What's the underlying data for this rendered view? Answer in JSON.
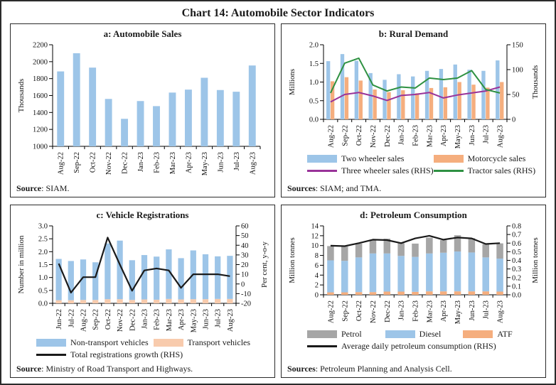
{
  "title": "Chart 14: Automobile Sector Indicators",
  "chart_data": [
    {
      "key": "a",
      "type": "bar",
      "title": "a: Automobile Sales",
      "ylabel_left": "Thousands",
      "ylim_left": [
        1000,
        2200
      ],
      "ytick_left": 200,
      "categories": [
        "Aug-22",
        "Sep-22",
        "Oct-22",
        "Nov-22",
        "Dec-22",
        "Jan-23",
        "Feb-23",
        "Mar-23",
        "Apr-23",
        "May-23",
        "Jun-23",
        "Jul-23",
        "Aug-23"
      ],
      "bar_series": [
        {
          "name": "Automobile sales",
          "color": "#9DC5E8",
          "values": [
            1885,
            2100,
            1930,
            1560,
            1325,
            1535,
            1475,
            1635,
            1670,
            1810,
            1665,
            1645,
            1955
          ]
        }
      ],
      "line_series": [],
      "legend": [],
      "legend_cols": 0,
      "source": {
        "bold": "Source",
        "rest": ": SIAM."
      }
    },
    {
      "key": "b",
      "type": "grouped-bar-line",
      "title": "b: Rural Demand",
      "ylabel_left": "Millions",
      "ylim_left": [
        0,
        2.0
      ],
      "ytick_left": 0.5,
      "ylabel_right": "Thousands",
      "ylim_right": [
        0,
        150
      ],
      "ytick_right": 50,
      "categories": [
        "Aug-22",
        "Sep-22",
        "Oct-22",
        "Nov-22",
        "Dec-22",
        "Jan-23",
        "Feb-23",
        "Mar-23",
        "Apr-23",
        "May-23",
        "Jun-23",
        "Jul-23",
        "Aug-23"
      ],
      "bar_series": [
        {
          "name": "Two wheeler sales",
          "color": "#9DC5E8",
          "values": [
            1.56,
            1.75,
            1.57,
            1.24,
            1.06,
            1.21,
            1.15,
            1.3,
            1.35,
            1.47,
            1.33,
            1.3,
            1.58
          ]
        },
        {
          "name": "Motorcycle sales",
          "color": "#F5AE7E",
          "values": [
            1.02,
            1.13,
            1.04,
            0.8,
            0.73,
            0.78,
            0.7,
            0.84,
            0.86,
            1.0,
            0.93,
            0.85,
            1.0
          ]
        }
      ],
      "line_series": [
        {
          "name": "Three wheeler sales (RHS)",
          "color": "#993399",
          "axis": "right",
          "values": [
            35,
            50,
            54,
            47,
            38,
            48,
            50,
            54,
            43,
            49,
            53,
            57,
            65
          ]
        },
        {
          "name": "Tractor sales (RHS)",
          "color": "#2E9142",
          "axis": "right",
          "values": [
            53,
            113,
            123,
            69,
            57,
            65,
            63,
            83,
            80,
            83,
            98,
            60,
            53
          ]
        }
      ],
      "legend": [
        {
          "label": "Two wheeler sales",
          "swatch": "bar",
          "color": "#9DC5E8"
        },
        {
          "label": "Motorcycle sales",
          "swatch": "bar",
          "color": "#F5AE7E"
        },
        {
          "label": "Three wheeler sales (RHS)",
          "swatch": "line",
          "color": "#993399"
        },
        {
          "label": "Tractor sales (RHS)",
          "swatch": "line",
          "color": "#2E9142"
        }
      ],
      "legend_cols": 2,
      "source": {
        "bold": "Sources",
        "rest": ": SIAM; and TMA."
      }
    },
    {
      "key": "c",
      "type": "stacked-bar-line",
      "title": "c: Vehicle Registrations",
      "ylabel_left": "Number in million",
      "ylim_left": [
        0,
        3.0
      ],
      "ytick_left": 0.5,
      "ylabel_right": "Per cent, y-o-y",
      "ylim_right": [
        -20,
        60
      ],
      "ytick_right": 10,
      "categories": [
        "Jun-22",
        "Jul-22",
        "Aug-22",
        "Sep-22",
        "Oct-22",
        "Nov-22",
        "Dec-22",
        "Jan-23",
        "Feb-23",
        "Mar-23",
        "Apr-23",
        "May-23",
        "Jun-23",
        "Jul-23",
        "Aug-23"
      ],
      "bar_series": [
        {
          "name": "Transport vehicles",
          "color": "#F8CBAD",
          "values": [
            0.12,
            0.12,
            0.13,
            0.13,
            0.16,
            0.16,
            0.13,
            0.15,
            0.14,
            0.17,
            0.15,
            0.16,
            0.16,
            0.17,
            0.17
          ]
        },
        {
          "name": "Non-transport vehicles",
          "color": "#9DC5E8",
          "values": [
            1.6,
            1.52,
            1.57,
            1.46,
            2.16,
            2.27,
            1.54,
            1.72,
            1.67,
            1.92,
            1.6,
            1.89,
            1.74,
            1.65,
            1.67
          ]
        }
      ],
      "line_series": [
        {
          "name": "Total registrations growth (RHS)",
          "color": "#1a1a1a",
          "axis": "right",
          "values": [
            21,
            -9,
            7,
            7,
            48,
            20,
            -7,
            14,
            16,
            14,
            -4,
            10,
            10,
            10,
            8
          ]
        }
      ],
      "legend": [
        {
          "label": "Non-transport vehicles",
          "swatch": "bar",
          "color": "#9DC5E8"
        },
        {
          "label": "Transport vehicles",
          "swatch": "bar",
          "color": "#F8CBAD"
        },
        {
          "label": "Total registrations growth (RHS)",
          "swatch": "line",
          "color": "#1a1a1a"
        }
      ],
      "legend_cols": 2,
      "source": {
        "bold": "Source",
        "rest": ": Ministry of Road Transport and Highways."
      }
    },
    {
      "key": "d",
      "type": "stacked-bar-line",
      "title": "d: Petroleum Consumption",
      "ylabel_left": "Million tonnes",
      "ylim_left": [
        0,
        14
      ],
      "ytick_left": 2,
      "ylabel_right": "Million tonnes",
      "ylim_right": [
        0,
        0.8
      ],
      "ytick_right": 0.1,
      "categories": [
        "Aug-22",
        "Sep-22",
        "Oct-22",
        "Nov-22",
        "Dec-22",
        "Jan-23",
        "Feb-23",
        "Mar-23",
        "Apr-23",
        "May-23",
        "Jun-23",
        "Jul-23",
        "Aug-23"
      ],
      "bar_series": [
        {
          "name": "ATF",
          "color": "#F5AE7E",
          "values": [
            0.5,
            0.5,
            0.55,
            0.55,
            0.65,
            0.65,
            0.6,
            0.7,
            0.7,
            0.7,
            0.7,
            0.7,
            0.65
          ]
        },
        {
          "name": "Diesel",
          "color": "#9DC5E8",
          "values": [
            6.5,
            6.4,
            7.05,
            7.85,
            7.75,
            7.25,
            7.1,
            7.7,
            7.85,
            8.1,
            7.9,
            6.9,
            6.7
          ]
        },
        {
          "name": "Petrol",
          "color": "#A6A6A6",
          "values": [
            2.9,
            2.9,
            2.8,
            2.8,
            3.0,
            2.6,
            2.7,
            3.2,
            2.55,
            3.3,
            2.9,
            2.7,
            3.1
          ]
        }
      ],
      "line_series": [
        {
          "name": "Average daily petroleum consumption (RHS)",
          "color": "#1a1a1a",
          "axis": "right",
          "values": [
            0.57,
            0.565,
            0.6,
            0.64,
            0.635,
            0.6,
            0.655,
            0.685,
            0.64,
            0.665,
            0.655,
            0.59,
            0.6
          ]
        }
      ],
      "legend": [
        {
          "label": "Petrol",
          "swatch": "bar",
          "color": "#A6A6A6"
        },
        {
          "label": "Diesel",
          "swatch": "bar",
          "color": "#9DC5E8"
        },
        {
          "label": "ATF",
          "swatch": "bar",
          "color": "#F5AE7E"
        },
        {
          "label": "Average daily petroleum consumption (RHS)",
          "swatch": "line",
          "color": "#1a1a1a"
        }
      ],
      "legend_cols": 3,
      "source": {
        "bold": "Sources",
        "rest": ": Petroleum Planning and Analysis Cell."
      }
    }
  ]
}
